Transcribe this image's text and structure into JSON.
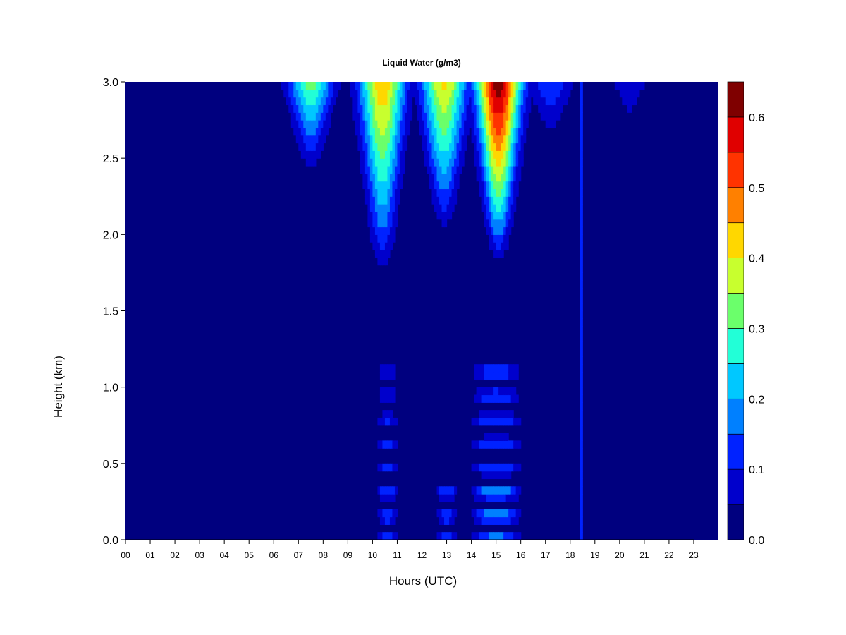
{
  "chart_data": {
    "type": "heatmap",
    "title": "Liquid Water (g/m3)",
    "xlabel": "Hours (UTC)",
    "ylabel": "Height (km)",
    "xlim": [
      0,
      24
    ],
    "ylim": [
      0,
      3
    ],
    "x_tick_labels": [
      "00",
      "01",
      "02",
      "03",
      "04",
      "05",
      "06",
      "07",
      "08",
      "09",
      "10",
      "11",
      "12",
      "13",
      "14",
      "15",
      "16",
      "17",
      "18",
      "19",
      "20",
      "21",
      "22",
      "23"
    ],
    "y_tick_labels": [
      "0.0",
      "0.5",
      "1.0",
      "1.5",
      "2.0",
      "2.5",
      "3.0"
    ],
    "colorbar": {
      "levels": [
        0.0,
        0.05,
        0.1,
        0.15,
        0.2,
        0.25,
        0.3,
        0.35,
        0.4,
        0.45,
        0.5,
        0.55,
        0.6,
        0.65
      ],
      "colors": [
        "#00007f",
        "#0000cc",
        "#0022ff",
        "#0080ff",
        "#00c8ff",
        "#22ffd7",
        "#6bff6b",
        "#c8ff2e",
        "#ffd700",
        "#ff8000",
        "#ff3300",
        "#e00000",
        "#7f0000"
      ],
      "tick_labels": [
        "0.0",
        "0.1",
        "0.2",
        "0.3",
        "0.4",
        "0.5",
        "0.6"
      ]
    },
    "features": [
      {
        "kind": "column",
        "hour": 7.5,
        "height_range": [
          2.4,
          3.0
        ],
        "peak": 0.32
      },
      {
        "kind": "column",
        "hour": 10.4,
        "height_range": [
          1.7,
          3.0
        ],
        "peak": 0.45
      },
      {
        "kind": "column",
        "hour": 12.9,
        "height_range": [
          2.0,
          3.0
        ],
        "peak": 0.42
      },
      {
        "kind": "column",
        "hour": 15.1,
        "height_range": [
          1.8,
          3.0
        ],
        "peak": 0.65
      },
      {
        "kind": "column",
        "hour": 17.2,
        "height_range": [
          2.6,
          3.0
        ],
        "peak": 0.15
      },
      {
        "kind": "streak",
        "hour": 18.45,
        "height_range": [
          0.0,
          3.0
        ],
        "peak": 0.2
      },
      {
        "kind": "column",
        "hour": 20.4,
        "height_range": [
          2.6,
          3.0
        ],
        "peak": 0.08
      },
      {
        "kind": "low_band",
        "hour_range": [
          10.2,
          11.0
        ],
        "height_range": [
          0.0,
          1.2
        ],
        "peak": 0.15
      },
      {
        "kind": "low_band",
        "hour_range": [
          12.6,
          13.4
        ],
        "height_range": [
          0.0,
          0.4
        ],
        "peak": 0.15
      },
      {
        "kind": "low_band",
        "hour_range": [
          14.0,
          16.0
        ],
        "height_range": [
          0.0,
          1.2
        ],
        "peak": 0.2
      }
    ]
  }
}
